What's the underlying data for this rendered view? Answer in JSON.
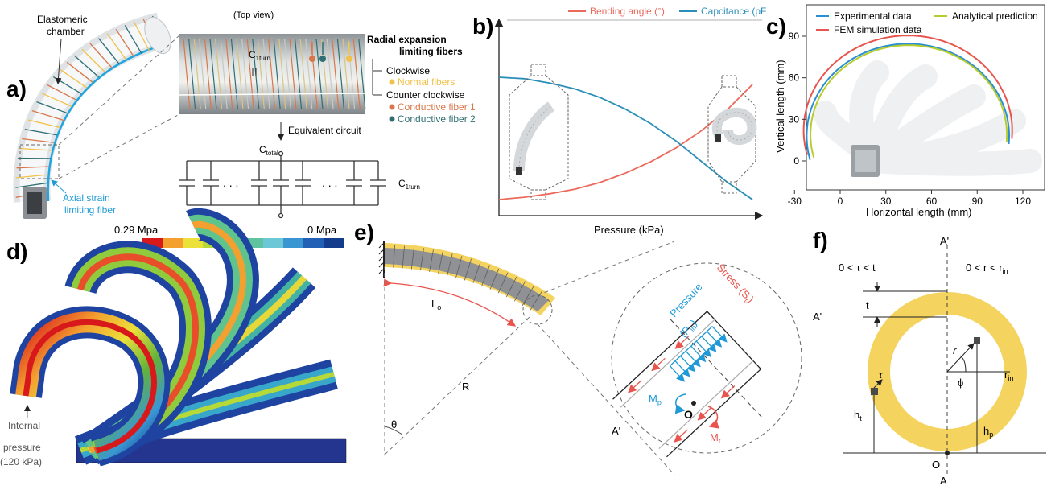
{
  "panels": {
    "a": {
      "label": "a)",
      "elastomeric_chamber": [
        "Elastomeric",
        "chamber"
      ],
      "top_view": "(Top view)",
      "radial_title": [
        "Radial expansion",
        "limiting fibers"
      ],
      "clockwise": "Clockwise",
      "normal_fibers": "Normal fibers",
      "counter_clockwise": "Counter clockwise",
      "conductive_1": "Conductive fiber 1",
      "conductive_2": "Conductive fiber 2",
      "c1turn": "C",
      "c1turn_sub": "1turn",
      "equivalent_circuit": "Equivalent circuit",
      "ctotal": "C",
      "ctotal_sub": "total",
      "dots": ". . .",
      "axial": [
        "Axial strain",
        "limiting fiber"
      ]
    },
    "b": {
      "label": "b)",
      "xlabel": "Pressure (kPa)",
      "legend": [
        "Bending angle (°)",
        "Capcitance (pF"
      ]
    },
    "c": {
      "label": "c)",
      "legend": [
        "Experimental data",
        "Analytical prediction",
        "FEM simulation data"
      ],
      "xlabel": "Horizontal length (mm)",
      "ylabel": "Vertical length (mm)",
      "xticks": [
        "-30",
        "0",
        "30",
        "60",
        "90",
        "120"
      ],
      "yticks": [
        "90",
        "60",
        "30",
        "0"
      ]
    },
    "d": {
      "label": "d)",
      "scale_max": "0.29 Mpa",
      "scale_min": "0 Mpa",
      "internal": [
        "Internal",
        "pressure",
        "(120 kPa)"
      ]
    },
    "e": {
      "label": "e)",
      "L0": "L",
      "L0_sub": "o",
      "R": "R",
      "theta": "θ",
      "A_prime": "A'",
      "stress": "Stress (S",
      "stress_sub": "t",
      "pressure": "Pressure",
      "pin": "(P",
      "pin_sub": "in",
      "O": "O",
      "Mp": "M",
      "Mp_sub": "p",
      "Mt": "M",
      "Mt_sub": "t"
    },
    "f": {
      "label": "f)",
      "A_prime": "A'",
      "A": "A",
      "tau_range": "0 < τ < t",
      "r_range": "0 < r < r",
      "r_range_sub": "in",
      "t": "t",
      "r": "r",
      "phi": "ϕ",
      "rin": "r",
      "rin_sub": "in",
      "tau": "τ",
      "ht": "h",
      "ht_sub": "t",
      "hp": "h",
      "hp_sub": "p",
      "O": "O"
    }
  },
  "colors": {
    "experimental": "#2a8fd0",
    "analytical": "#b7cc2e",
    "fem": "#e8554e",
    "bending": "#ec6a5c",
    "capacitance": "#2a8fb8",
    "ring": "#f4d35e",
    "conductive_1": "#d9774a",
    "conductive_2": "#2f6f73",
    "normal": "#f1c24a"
  },
  "colorbar": [
    "#d7191c",
    "#f4a030",
    "#ece03a",
    "#b6d93a",
    "#63b33a",
    "#5fc3a0",
    "#6cc7d6",
    "#3a96d3",
    "#2160b4",
    "#143c8c"
  ],
  "chart_data": [
    {
      "type": "line",
      "panel": "b",
      "xlabel": "Pressure (kPa)",
      "ylabel": "",
      "series": [
        {
          "name": "Bending angle (°)",
          "x": [
            0,
            0.1,
            0.2,
            0.3,
            0.4,
            0.5,
            0.6,
            0.7,
            0.8,
            0.9,
            1.0
          ],
          "y": [
            0.0,
            0.02,
            0.05,
            0.09,
            0.15,
            0.23,
            0.33,
            0.45,
            0.6,
            0.78,
            1.0
          ]
        },
        {
          "name": "Capcitance (pF",
          "x": [
            0,
            0.1,
            0.2,
            0.3,
            0.4,
            0.5,
            0.6,
            0.7,
            0.8,
            0.9,
            1.0
          ],
          "y": [
            0.84,
            0.83,
            0.8,
            0.76,
            0.7,
            0.62,
            0.52,
            0.4,
            0.26,
            0.12,
            0.0
          ]
        }
      ],
      "grid": false
    },
    {
      "type": "line",
      "panel": "c",
      "xlabel": "Horizontal length (mm)",
      "ylabel": "Vertical length (mm)",
      "xlim": [
        -35,
        125
      ],
      "ylim": [
        -10,
        97
      ],
      "series": [
        {
          "name": "FEM simulation data",
          "cx": 44.5,
          "cy": 22,
          "r": 68.5
        },
        {
          "name": "Experimental data",
          "cx": 44.5,
          "cy": 18,
          "r": 66.5
        },
        {
          "name": "Analytical prediction",
          "cx": 45,
          "cy": 19,
          "r": 64.5
        }
      ],
      "grid": false,
      "legend": "top"
    }
  ]
}
